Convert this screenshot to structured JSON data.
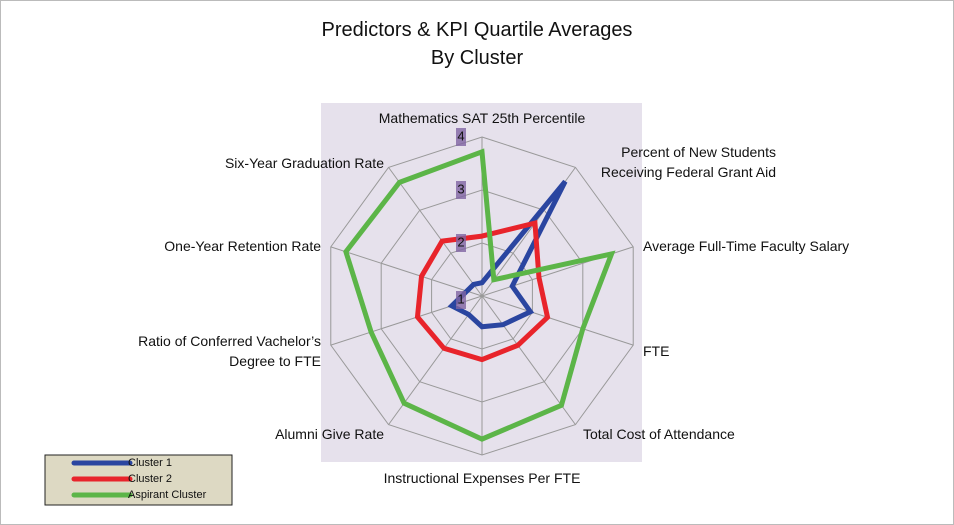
{
  "chart_data": {
    "type": "radar",
    "title": "Predictors & KPI Quartile Averages\nBy Cluster",
    "categories": [
      "Mathematics SAT 25th Percentile",
      "Percent of New Students\nReceiving Federal Grant Aid",
      "Average Full-Time Faculty Salary",
      "FTE",
      "Total Cost of Attendance",
      "Instructional Expenses Per FTE",
      "Alumni Give Rate",
      "Ratio of Conferred Vachelor’s\nDegree to FTE",
      "One-Year Retention Rate",
      "Six-Year Graduation Rate"
    ],
    "series": [
      {
        "name": "Cluster 1",
        "color": "#2a45a0",
        "values": [
          1.25,
          3.67,
          1.6,
          1.96,
          1.67,
          1.58,
          1.43,
          1.6,
          1.3,
          1.27
        ]
      },
      {
        "name": "Cluster 2",
        "color": "#e8242b",
        "values": [
          2.13,
          2.7,
          2.13,
          2.3,
          2.15,
          2.2,
          2.22,
          2.28,
          2.2,
          2.28
        ]
      },
      {
        "name": "Aspirant Cluster",
        "color": "#5cb548",
        "values": [
          3.72,
          1.38,
          3.57,
          3.0,
          3.55,
          3.7,
          3.5,
          3.2,
          3.7,
          3.65
        ]
      }
    ],
    "ylim": [
      1,
      4
    ],
    "yticks": [
      1,
      2,
      3,
      4
    ],
    "grid": true
  }
}
